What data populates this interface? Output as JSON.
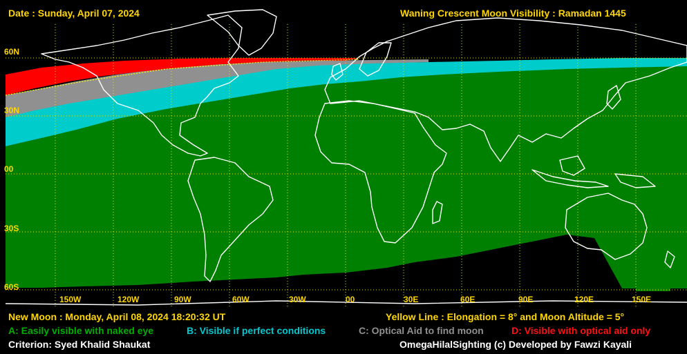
{
  "header": {
    "date": "Date : Sunday, April 07, 2024",
    "title": "Waning Crescent Moon Visibility : Ramadan 1445"
  },
  "lat_labels": [
    "60N",
    "30N",
    "00",
    "30S",
    "60S"
  ],
  "lon_labels": [
    "150W",
    "120W",
    "90W",
    "60W",
    "30W",
    "00",
    "30E",
    "60E",
    "90E",
    "120E",
    "150E"
  ],
  "footer": {
    "new_moon": "New Moon : Monday, April 08, 2024  18:20:32  UT",
    "yellow_line": "Yellow Line : Elongation = 8° and Moon Altitude = 5°",
    "criterion": "Criterion: Syed Khalid Shaukat",
    "credit": "OmegaHilalSighting  (c)  Developed by Fawzi Kayali"
  },
  "legend": [
    {
      "code": "A",
      "text": "A: Easily visible with naked eye",
      "color": "#00b000"
    },
    {
      "code": "B",
      "text": "B: Visible if perfect conditions",
      "color": "#00c8d0"
    },
    {
      "code": "C",
      "text": "C: Optical Aid to find moon",
      "color": "#909090"
    },
    {
      "code": "D",
      "text": "D: Visible with optical aid only",
      "color": "#ff1010"
    }
  ],
  "colors": {
    "zone_a": "#008000",
    "zone_b": "#00cccc",
    "zone_c": "#909090",
    "zone_d": "#ff0000",
    "grid": "#e8e800",
    "coast": "#ffffff",
    "text": "#ffd700"
  }
}
